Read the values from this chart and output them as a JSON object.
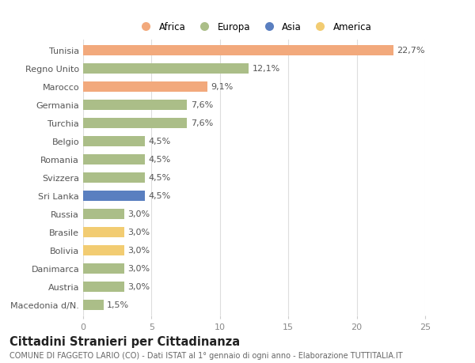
{
  "categories": [
    "Tunisia",
    "Regno Unito",
    "Marocco",
    "Germania",
    "Turchia",
    "Belgio",
    "Romania",
    "Svizzera",
    "Sri Lanka",
    "Russia",
    "Brasile",
    "Bolivia",
    "Danimarca",
    "Austria",
    "Macedonia d/N."
  ],
  "values": [
    22.7,
    12.1,
    9.1,
    7.6,
    7.6,
    4.5,
    4.5,
    4.5,
    4.5,
    3.0,
    3.0,
    3.0,
    3.0,
    3.0,
    1.5
  ],
  "labels": [
    "22,7%",
    "12,1%",
    "9,1%",
    "7,6%",
    "7,6%",
    "4,5%",
    "4,5%",
    "4,5%",
    "4,5%",
    "3,0%",
    "3,0%",
    "3,0%",
    "3,0%",
    "3,0%",
    "1,5%"
  ],
  "continents": [
    "Africa",
    "Europa",
    "Africa",
    "Europa",
    "Europa",
    "Europa",
    "Europa",
    "Europa",
    "Asia",
    "Europa",
    "America",
    "America",
    "Europa",
    "Europa",
    "Europa"
  ],
  "colors": {
    "Africa": "#F2A97C",
    "Europa": "#ABBE88",
    "Asia": "#5A7FC0",
    "America": "#F2CC72"
  },
  "legend_order": [
    "Africa",
    "Europa",
    "Asia",
    "America"
  ],
  "xlim": [
    0,
    25
  ],
  "xticks": [
    0,
    5,
    10,
    15,
    20,
    25
  ],
  "title": "Cittadini Stranieri per Cittadinanza",
  "subtitle": "COMUNE DI FAGGETO LARIO (CO) - Dati ISTAT al 1° gennaio di ogni anno - Elaborazione TUTTITALIA.IT",
  "bg_color": "#ffffff",
  "grid_color": "#dddddd",
  "bar_height": 0.55,
  "label_fontsize": 8,
  "tick_fontsize": 8,
  "title_fontsize": 10.5,
  "subtitle_fontsize": 7
}
